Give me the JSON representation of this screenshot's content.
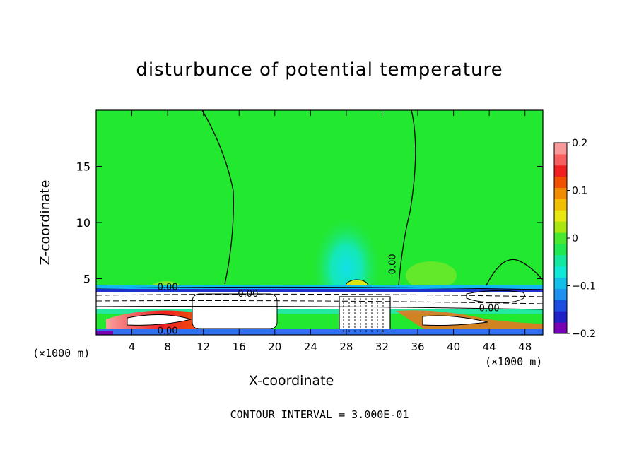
{
  "chart_data": {
    "type": "heatmap",
    "title": "disturbunce of potential temperature",
    "xlabel": "X-coordinate",
    "ylabel": "Z-coordinate",
    "x_unit": "(×1000 m)",
    "y_unit": "(×1000 m)",
    "xlim": [
      0,
      50
    ],
    "ylim": [
      0,
      20
    ],
    "x_ticks": [
      4,
      8,
      12,
      16,
      20,
      24,
      28,
      32,
      36,
      40,
      44,
      48
    ],
    "y_ticks": [
      5,
      10,
      15
    ],
    "colorbar": {
      "range": [
        -0.2,
        0.2
      ],
      "tick_values": [
        0.2,
        0.1,
        0,
        -0.1,
        -0.2
      ],
      "tick_labels": [
        "0.2",
        "0.1",
        "0",
        "−0.1",
        "−0.2"
      ],
      "colors": [
        "#7a00b4",
        "#2020c8",
        "#1c4ce0",
        "#1e90f0",
        "#10c0e8",
        "#10e8d8",
        "#14e8a0",
        "#20e850",
        "#48e830",
        "#a8e810",
        "#e8e810",
        "#f0c000",
        "#f08c00",
        "#f05000",
        "#f02020",
        "#f86060",
        "#f89898"
      ]
    },
    "contour_labels": [
      {
        "text": "0.00",
        "x": 8,
        "z": 4.0
      },
      {
        "text": "0.00",
        "x": 17,
        "z": 3.4
      },
      {
        "text": "0.00",
        "x": 33.5,
        "z": 6.3,
        "rotated": true
      },
      {
        "text": "0.00",
        "x": 44,
        "z": 2.1
      },
      {
        "text": "0.00",
        "x": 8,
        "z": 0.1
      }
    ],
    "footer": "CONTOUR INTERVAL = 3.000E-01"
  }
}
